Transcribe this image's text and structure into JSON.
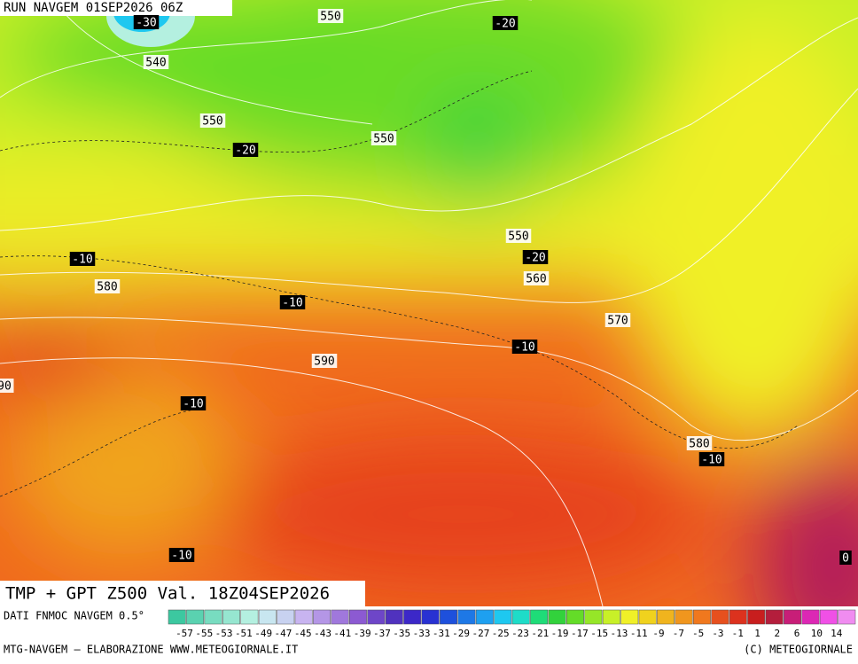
{
  "header": {
    "run": "RUN NAVGEM 01SEP2026 06Z"
  },
  "map": {
    "contour_labels": [
      "-30",
      "550",
      "-20",
      "540",
      "550",
      "-20",
      "550",
      "550",
      "-20",
      "-10",
      "560",
      "580",
      "-10",
      "570",
      "-10",
      "590",
      "90",
      "-10",
      "580",
      "-10",
      "-10",
      "0"
    ]
  },
  "caption": "TMP + GPT Z500 Val. 18Z04SEP2026",
  "legend": {
    "source": "DATI FNMOC NAVGEM 0.5°",
    "labels": [
      "-57",
      "-55",
      "-53",
      "-51",
      "-49",
      "-47",
      "-45",
      "-43",
      "-41",
      "-39",
      "-37",
      "-35",
      "-33",
      "-31",
      "-29",
      "-27",
      "-25",
      "-23",
      "-21",
      "-19",
      "-17",
      "-15",
      "-13",
      "-11",
      "-9",
      "-7",
      "-5",
      "-3",
      "-1",
      "1",
      "2",
      "6",
      "10",
      "14"
    ],
    "colors": [
      "#3cc8a0",
      "#5ad2b0",
      "#78dcc0",
      "#96e6d0",
      "#b4f0e0",
      "#c8e6f0",
      "#c8d2f0",
      "#c8b4f0",
      "#b496e6",
      "#a078dc",
      "#8c5ad2",
      "#6e46c8",
      "#5032be",
      "#3c28c8",
      "#2832d2",
      "#1e50dc",
      "#1e78e6",
      "#1ea0f0",
      "#1ec8f0",
      "#1edcc8",
      "#1edc78",
      "#32d23c",
      "#64dc28",
      "#96e628",
      "#c8f028",
      "#f0f028",
      "#f0d21e",
      "#f0b41e",
      "#f0961e",
      "#f0781e",
      "#e6501e",
      "#dc321e",
      "#c81e1e",
      "#b41e3c",
      "#c81e78",
      "#dc28b4",
      "#f050e6",
      "#f08cf0"
    ]
  },
  "footer": {
    "left": "MTG-NAVGEM – ELABORAZIONE WWW.METEOGIORNALE.IT",
    "right": "(C) METEOGIORNALE"
  }
}
